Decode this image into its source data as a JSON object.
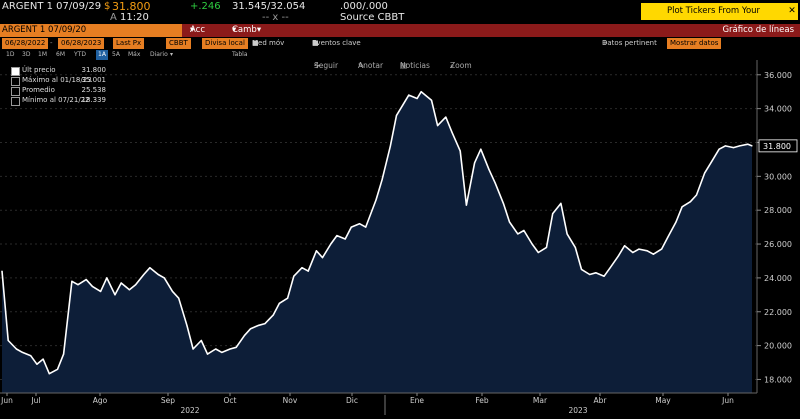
{
  "quote": {
    "ticker": "ARGENT 1 07/09/29",
    "dollar": "$",
    "price": "31.800",
    "change": "+.246",
    "bid_ask": "31.545/32.054",
    "sizes": ".000/.000",
    "time_prefix": "A",
    "time": "11:20",
    "dashes": "-- x --",
    "source": "Source CBBT",
    "plot_button": "Plot Tickers From Your Worksheets",
    "close_label": "✕"
  },
  "function_bar": {
    "security": "ARGENT 1 07/09/20",
    "acc": "Acc",
    "camb": "Camb",
    "title": "Gráfico de líneas"
  },
  "controls": {
    "start_date": "06/28/2022",
    "end_date": "06/28/2023",
    "field": "Last Px",
    "source": "CBBT",
    "currency": "Divisa local",
    "moving_avg": "Med móv",
    "key_events": "Eventos clave",
    "data_pertinent": "Datos pertinent",
    "edit_data": "Mostrar datos"
  },
  "periods": [
    "1D",
    "3D",
    "1M",
    "6M",
    "YTD",
    "1A",
    "5A",
    "Máx",
    "Diario",
    "▾",
    "Tabla"
  ],
  "selected_period": "1A",
  "chart_tools": [
    "Seguir",
    "Anotar",
    "Noticias",
    "Zoom"
  ],
  "legend": [
    {
      "label": "Últ precio",
      "value": "31.800",
      "selected": true
    },
    {
      "label": "Máximo al 01/18/23",
      "value": "35.001",
      "selected": false
    },
    {
      "label": "Promedio",
      "value": "25.538",
      "selected": false
    },
    {
      "label": "Mínimo al 07/21/22",
      "value": "18.339",
      "selected": false
    }
  ],
  "chart_data": {
    "type": "area",
    "title": "",
    "xlabel": "",
    "ylabel": "",
    "ylim": [
      17.2,
      36.4
    ],
    "y_ticks": [
      18,
      20,
      22,
      24,
      26,
      28,
      30,
      32,
      34,
      36
    ],
    "y_tick_labels": [
      "18.000",
      "20.000",
      "22.000",
      "24.000",
      "26.000",
      "28.000",
      "30.000",
      "32.000",
      "34.000",
      "36.000"
    ],
    "last_value_label": "31.800",
    "month_labels": [
      "Jun",
      "Jul",
      "Ago",
      "Sep",
      "Oct",
      "Nov",
      "Dic",
      "Ene",
      "Feb",
      "Mar",
      "Abr",
      "May",
      "Jun"
    ],
    "year_labels": [
      "2022",
      "2023"
    ],
    "line_color": "#ffffff",
    "fill_color": "#0d1e38",
    "x": [
      "2022-06-28",
      "2022-07-01",
      "2022-07-05",
      "2022-07-08",
      "2022-07-12",
      "2022-07-15",
      "2022-07-18",
      "2022-07-21",
      "2022-07-25",
      "2022-07-28",
      "2022-08-01",
      "2022-08-04",
      "2022-08-08",
      "2022-08-11",
      "2022-08-15",
      "2022-08-18",
      "2022-08-22",
      "2022-08-25",
      "2022-08-29",
      "2022-09-01",
      "2022-09-05",
      "2022-09-08",
      "2022-09-12",
      "2022-09-15",
      "2022-09-19",
      "2022-09-22",
      "2022-09-26",
      "2022-09-29",
      "2022-10-03",
      "2022-10-06",
      "2022-10-10",
      "2022-10-13",
      "2022-10-17",
      "2022-10-20",
      "2022-10-24",
      "2022-10-27",
      "2022-10-31",
      "2022-11-03",
      "2022-11-07",
      "2022-11-10",
      "2022-11-14",
      "2022-11-17",
      "2022-11-21",
      "2022-11-24",
      "2022-11-28",
      "2022-12-01",
      "2022-12-05",
      "2022-12-08",
      "2022-12-12",
      "2022-12-15",
      "2022-12-19",
      "2022-12-22",
      "2022-12-27",
      "2022-12-30",
      "2023-01-03",
      "2023-01-06",
      "2023-01-09",
      "2023-01-12",
      "2023-01-16",
      "2023-01-18",
      "2023-01-23",
      "2023-01-26",
      "2023-01-30",
      "2023-02-02",
      "2023-02-06",
      "2023-02-09",
      "2023-02-13",
      "2023-02-16",
      "2023-02-20",
      "2023-02-23",
      "2023-02-27",
      "2023-03-02",
      "2023-03-06",
      "2023-03-09",
      "2023-03-13",
      "2023-03-16",
      "2023-03-20",
      "2023-03-23",
      "2023-03-27",
      "2023-03-30",
      "2023-04-03",
      "2023-04-06",
      "2023-04-10",
      "2023-04-13",
      "2023-04-17",
      "2023-04-20",
      "2023-04-24",
      "2023-04-27",
      "2023-05-01",
      "2023-05-04",
      "2023-05-08",
      "2023-05-11",
      "2023-05-15",
      "2023-05-18",
      "2023-05-22",
      "2023-05-25",
      "2023-05-29",
      "2023-06-01",
      "2023-06-05",
      "2023-06-08",
      "2023-06-12",
      "2023-06-15",
      "2023-06-19",
      "2023-06-22",
      "2023-06-26",
      "2023-06-28"
    ],
    "values": [
      24.4,
      20.3,
      19.8,
      19.6,
      19.4,
      18.9,
      19.2,
      18.34,
      18.6,
      19.5,
      23.8,
      23.6,
      23.9,
      23.5,
      23.2,
      24.0,
      23.0,
      23.7,
      23.3,
      23.6,
      24.2,
      24.6,
      24.2,
      24.0,
      23.2,
      22.8,
      21.2,
      19.8,
      20.3,
      19.5,
      19.8,
      19.6,
      19.8,
      19.9,
      20.6,
      21.0,
      21.2,
      21.3,
      21.8,
      22.5,
      22.8,
      24.1,
      24.6,
      24.4,
      25.6,
      25.2,
      26.0,
      26.5,
      26.3,
      27.0,
      27.2,
      27.0,
      28.6,
      29.8,
      31.8,
      33.6,
      34.2,
      34.8,
      34.6,
      35.0,
      34.5,
      33.0,
      33.5,
      32.6,
      31.5,
      28.3,
      30.8,
      31.6,
      30.4,
      29.6,
      28.4,
      27.3,
      26.6,
      26.8,
      26.0,
      25.5,
      25.8,
      27.8,
      28.4,
      26.6,
      25.8,
      24.5,
      24.2,
      24.3,
      24.1,
      24.6,
      25.3,
      25.9,
      25.5,
      25.7,
      25.6,
      25.4,
      25.7,
      26.4,
      27.3,
      28.2,
      28.5,
      28.9,
      30.2,
      30.8,
      31.6,
      31.8,
      31.7,
      31.8,
      31.9,
      31.8
    ]
  }
}
